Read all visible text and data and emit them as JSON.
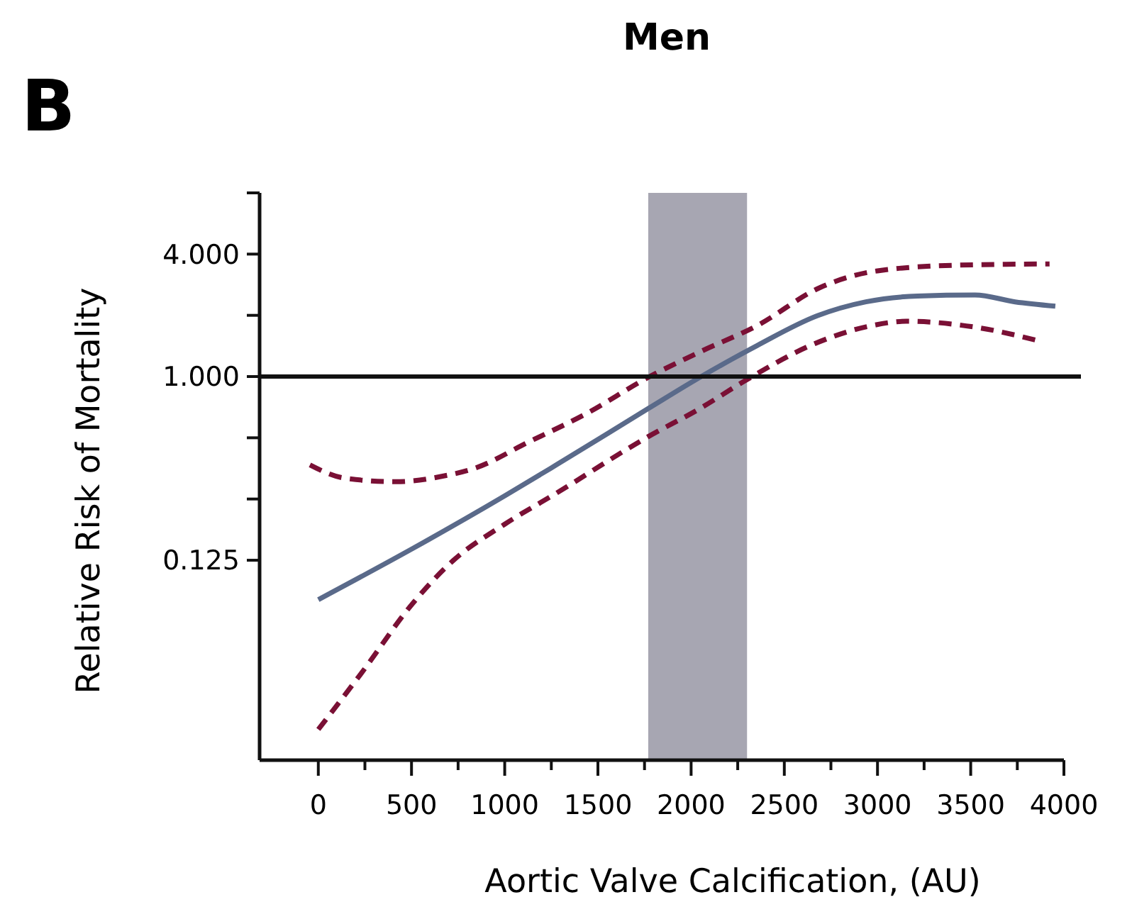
{
  "chart_data": {
    "type": "line",
    "title": "Men",
    "annotations": [
      "B"
    ],
    "xlabel": "Aortic Valve Calcification, (AU)",
    "ylabel": "Relative Risk of Mortality",
    "log": "y",
    "xlim": [
      -315,
      4000
    ],
    "ylim": [
      0.013,
      8
    ],
    "xticks": [
      0,
      {
        "value": 250,
        "label": null
      },
      500,
      {
        "value": 750,
        "label": null
      },
      1000,
      {
        "value": 1250,
        "label": null
      },
      1500,
      {
        "value": 1750,
        "label": null
      },
      2000,
      {
        "value": 2250,
        "label": null
      },
      2500,
      {
        "value": 2750,
        "label": null
      },
      3000,
      {
        "value": 3250,
        "label": null
      },
      3500,
      {
        "value": 3750,
        "label": null
      },
      4000
    ],
    "yticks": [
      {
        "value": 0.125,
        "label": "0.125"
      },
      {
        "value": 0.25,
        "label": null
      },
      {
        "value": 0.5,
        "label": null
      },
      {
        "value": 1,
        "label": "1.000"
      },
      {
        "value": 2,
        "label": null
      },
      {
        "value": 4,
        "label": "4.000"
      },
      {
        "value": 8,
        "label": null
      }
    ],
    "bands": [
      {
        "axis": "x",
        "from": 1770,
        "to": 2300,
        "color": "#a7a6b2"
      }
    ],
    "ref_lines": [
      {
        "axis": "y",
        "value": 1,
        "color": "#111111"
      }
    ],
    "series": [
      {
        "color": "#7a1035",
        "line_style": "dashed",
        "x": [
          -45,
          138,
          415,
          662,
          846,
          1123,
          1431,
          1769,
          2046,
          2354,
          2692,
          3000,
          3431,
          3923
        ],
        "values": [
          0.368,
          0.317,
          0.304,
          0.323,
          0.356,
          0.474,
          0.652,
          0.99,
          1.32,
          1.78,
          2.74,
          3.31,
          3.53,
          3.58
        ]
      },
      {
        "color": "#7a1035",
        "line_style": "dashed",
        "x": [
          0,
          231,
          508,
          723,
          1000,
          1277,
          1769,
          2046,
          2292,
          2662,
          2969,
          3154,
          3523,
          3877
        ],
        "values": [
          0.0184,
          0.0348,
          0.077,
          0.1244,
          0.188,
          0.267,
          0.506,
          0.695,
          0.957,
          1.45,
          1.78,
          1.87,
          1.75,
          1.49
        ]
      },
      {
        "color": "#5a6a8a",
        "line_style": "solid",
        "x": [
          0,
          508,
          1000,
          1277,
          1769,
          2046,
          2354,
          2677,
          2938,
          3215,
          3523,
          3738,
          3954
        ],
        "values": [
          0.08,
          0.143,
          0.259,
          0.368,
          0.695,
          0.99,
          1.42,
          1.99,
          2.33,
          2.49,
          2.52,
          2.33,
          2.22
        ]
      }
    ]
  }
}
